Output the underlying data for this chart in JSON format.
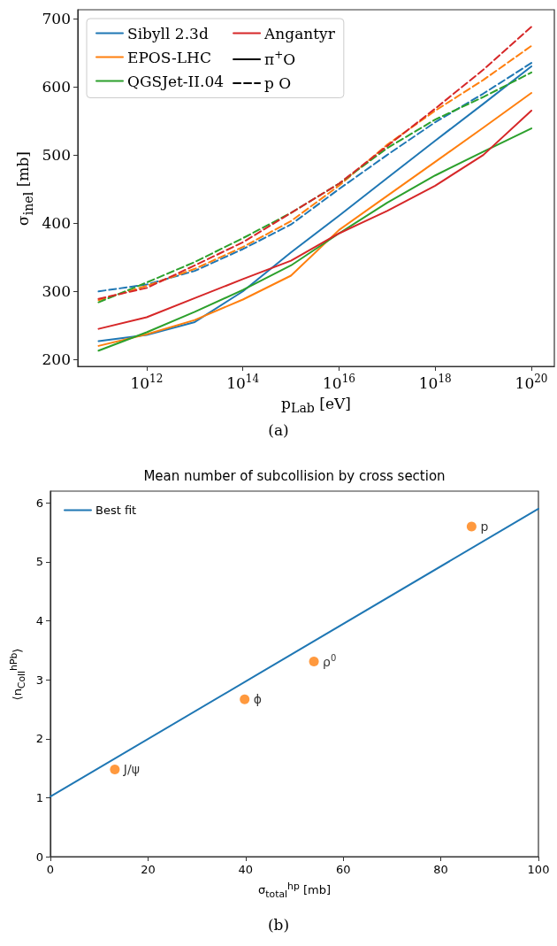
{
  "chart_data": [
    {
      "type": "line",
      "xlabel": "p$_{Lab}$ [eV]",
      "ylabel": "σ$_{inel}$ [mb]",
      "log": "x",
      "grid": false,
      "legend": "top left",
      "marker": "none",
      "annotations": [
        "(a)"
      ],
      "x": [
        100000000000.0,
        1000000000000.0,
        10000000000000.0,
        100000000000000.0,
        1000000000000000.0,
        1e+16,
        1e+17,
        1e+18,
        1e+19,
        1e+20
      ],
      "xlim": [
        37000000000.0,
        3e+20
      ],
      "xticks": [
        {
          "value": 1000000000000.0,
          "label": "10$^{12}$"
        },
        {
          "value": 100000000000000.0,
          "label": "10$^{14}$"
        },
        {
          "value": 1e+16,
          "label": "10$^{16}$"
        },
        {
          "value": 1e+18,
          "label": "10$^{18}$"
        },
        {
          "value": 1e+20,
          "label": "10$^{20}$"
        }
      ],
      "ylim": [
        190,
        713
      ],
      "yticks": [
        200,
        300,
        400,
        500,
        600,
        700
      ],
      "series": [
        {
          "name": "Sibyll 2.3d",
          "color": "#1f77b4",
          "line_style": "solid",
          "values": [
            227,
            236,
            255,
            300,
            357,
            411,
            466,
            521,
            575,
            630
          ]
        },
        {
          "name": "EPOS-LHC",
          "color": "#ff7f0e",
          "line_style": "solid",
          "values": [
            220,
            237,
            258,
            288,
            323,
            390,
            440,
            490,
            540,
            591
          ]
        },
        {
          "name": "QGSJet-II.04",
          "color": "#2ca02c",
          "line_style": "solid",
          "values": [
            213,
            240,
            270,
            302,
            338,
            385,
            430,
            470,
            505,
            539
          ]
        },
        {
          "name": "Angantyr",
          "color": "#d62728",
          "line_style": "solid",
          "values": [
            245,
            262,
            290,
            318,
            345,
            385,
            418,
            455,
            500,
            565
          ]
        },
        {
          "name": "π$^{+}$O",
          "color": "#000000",
          "line_style": "solid",
          "values": [
            null,
            null,
            null,
            null,
            null,
            null,
            null,
            null,
            null,
            null
          ]
        },
        {
          "name": "p O",
          "color": "#000000",
          "line_style": "dashed",
          "values": [
            null,
            null,
            null,
            null,
            null,
            null,
            null,
            null,
            null,
            null
          ]
        },
        {
          "color": "#1f77b4",
          "line_style": "dashed",
          "values": [
            300,
            310,
            330,
            362,
            398,
            450,
            500,
            548,
            590,
            635
          ]
        },
        {
          "color": "#ff7f0e",
          "line_style": "dashed",
          "values": [
            287,
            308,
            333,
            365,
            403,
            455,
            515,
            565,
            610,
            660
          ]
        },
        {
          "color": "#2ca02c",
          "line_style": "dashed",
          "values": [
            284,
            313,
            343,
            378,
            415,
            458,
            510,
            552,
            585,
            621
          ]
        },
        {
          "color": "#d62728",
          "line_style": "dashed",
          "values": [
            289,
            305,
            338,
            372,
            415,
            458,
            513,
            568,
            625,
            688
          ]
        }
      ]
    },
    {
      "type": "scatter",
      "title": "Mean number of subcollision by cross section",
      "xlabel": "σ$_{total}$$^{hp}$ [mb]",
      "ylabel": "⟨n$_{Coll}$$^{hPb}$⟩",
      "grid": false,
      "legend": "top left",
      "marker": "circle",
      "annotations": [
        {
          "text": "J/ψ",
          "x": 13.2,
          "y": 1.48
        },
        {
          "text": "ϕ",
          "x": 39.8,
          "y": 2.67
        },
        {
          "text": "ρ$^{0}$",
          "x": 54,
          "y": 3.31
        },
        {
          "text": "p",
          "x": 86.3,
          "y": 5.6
        },
        "(b)"
      ],
      "xlim": [
        0,
        100
      ],
      "xticks": [
        0,
        20,
        40,
        60,
        80,
        100
      ],
      "ylim": [
        0,
        6.2
      ],
      "yticks": [
        0,
        1,
        2,
        3,
        4,
        5,
        6
      ],
      "series": [
        {
          "name": "Best fit",
          "type": "line",
          "marker": "none",
          "color": "#1f77b4",
          "x": [
            0,
            100
          ],
          "values": [
            1.02,
            5.9
          ]
        },
        {
          "color": "#ff7f0e",
          "x": [
            13.2,
            39.8,
            54,
            86.3
          ],
          "values": [
            1.48,
            2.67,
            3.31,
            5.6
          ]
        }
      ]
    }
  ]
}
